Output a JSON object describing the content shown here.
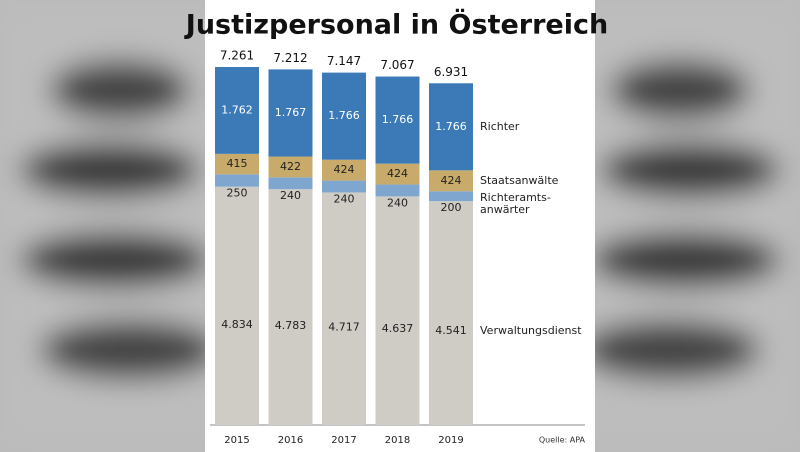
{
  "chart_data": {
    "type": "stacked-bar",
    "title": "Justizpersonal in Österreich",
    "categories": [
      "2015",
      "2016",
      "2017",
      "2018",
      "2019"
    ],
    "series": [
      {
        "name": "Verwaltungsdienst",
        "color": "#cfcbc5",
        "values": [
          4834,
          4783,
          4717,
          4637,
          4541
        ],
        "value_labels": [
          "4.834",
          "4.783",
          "4.717",
          "4.637",
          "4.541"
        ]
      },
      {
        "name": "Richteramts-anwärter",
        "color": "#7fa6cf",
        "values": [
          250,
          240,
          240,
          240,
          200
        ],
        "value_labels": [
          "250",
          "240",
          "240",
          "240",
          "200"
        ]
      },
      {
        "name": "Staatsanwälte",
        "color": "#c8ab6b",
        "values": [
          415,
          422,
          424,
          424,
          424
        ],
        "value_labels": [
          "415",
          "422",
          "424",
          "424",
          "424"
        ]
      },
      {
        "name": "Richter",
        "color": "#3b7ab6",
        "values": [
          1762,
          1767,
          1766,
          1766,
          1766
        ],
        "value_labels": [
          "1.762",
          "1.767",
          "1.766",
          "1.766",
          "1.766"
        ]
      }
    ],
    "totals": {
      "values": [
        7261,
        7212,
        7147,
        7067,
        6931
      ],
      "value_labels": [
        "7.261",
        "7.212",
        "7.147",
        "7.067",
        "6.931"
      ]
    },
    "source": "Quelle: APA"
  }
}
